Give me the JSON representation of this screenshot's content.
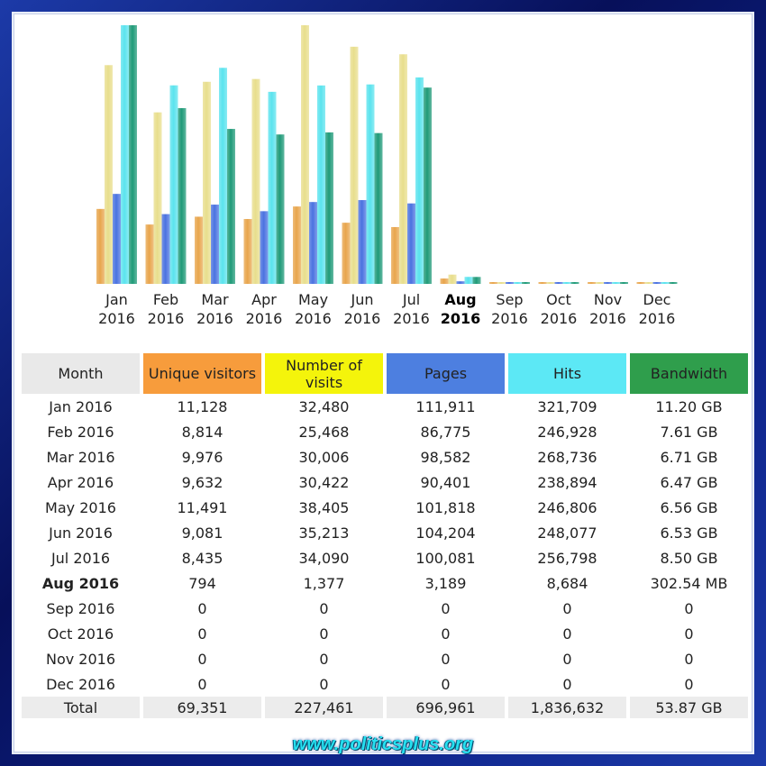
{
  "colors": {
    "unique": "#e8a54c",
    "visits": "#e8de8c",
    "pages": "#4a72e0",
    "hits": "#5ae3ee",
    "bandwidth": "#1f9a78"
  },
  "table": {
    "headers": {
      "month": "Month",
      "unique": "Unique visitors",
      "visits": "Number of visits",
      "pages": "Pages",
      "hits": "Hits",
      "bandwidth": "Bandwidth"
    },
    "rows": [
      {
        "month": "Jan 2016",
        "unique": "11,128",
        "visits": "32,480",
        "pages": "111,911",
        "hits": "321,709",
        "bandwidth": "11.20 GB"
      },
      {
        "month": "Feb 2016",
        "unique": "8,814",
        "visits": "25,468",
        "pages": "86,775",
        "hits": "246,928",
        "bandwidth": "7.61 GB"
      },
      {
        "month": "Mar 2016",
        "unique": "9,976",
        "visits": "30,006",
        "pages": "98,582",
        "hits": "268,736",
        "bandwidth": "6.71 GB"
      },
      {
        "month": "Apr 2016",
        "unique": "9,632",
        "visits": "30,422",
        "pages": "90,401",
        "hits": "238,894",
        "bandwidth": "6.47 GB"
      },
      {
        "month": "May 2016",
        "unique": "11,491",
        "visits": "38,405",
        "pages": "101,818",
        "hits": "246,806",
        "bandwidth": "6.56 GB"
      },
      {
        "month": "Jun 2016",
        "unique": "9,081",
        "visits": "35,213",
        "pages": "104,204",
        "hits": "248,077",
        "bandwidth": "6.53 GB"
      },
      {
        "month": "Jul 2016",
        "unique": "8,435",
        "visits": "34,090",
        "pages": "100,081",
        "hits": "256,798",
        "bandwidth": "8.50 GB"
      },
      {
        "month": "Aug 2016",
        "unique": "794",
        "visits": "1,377",
        "pages": "3,189",
        "hits": "8,684",
        "bandwidth": "302.54 MB"
      },
      {
        "month": "Sep 2016",
        "unique": "0",
        "visits": "0",
        "pages": "0",
        "hits": "0",
        "bandwidth": "0"
      },
      {
        "month": "Oct 2016",
        "unique": "0",
        "visits": "0",
        "pages": "0",
        "hits": "0",
        "bandwidth": "0"
      },
      {
        "month": "Nov 2016",
        "unique": "0",
        "visits": "0",
        "pages": "0",
        "hits": "0",
        "bandwidth": "0"
      },
      {
        "month": "Dec 2016",
        "unique": "0",
        "visits": "0",
        "pages": "0",
        "hits": "0",
        "bandwidth": "0"
      }
    ],
    "total": {
      "month": "Total",
      "unique": "69,351",
      "visits": "227,461",
      "pages": "696,961",
      "hits": "1,836,632",
      "bandwidth": "53.87 GB"
    }
  },
  "chart_data": {
    "type": "bar",
    "categories": [
      "Jan 2016",
      "Feb 2016",
      "Mar 2016",
      "Apr 2016",
      "May 2016",
      "Jun 2016",
      "Jul 2016",
      "Aug 2016",
      "Sep 2016",
      "Oct 2016",
      "Nov 2016",
      "Dec 2016"
    ],
    "category_labels": [
      [
        "Jan",
        "2016"
      ],
      [
        "Feb",
        "2016"
      ],
      [
        "Mar",
        "2016"
      ],
      [
        "Apr",
        "2016"
      ],
      [
        "May",
        "2016"
      ],
      [
        "Jun",
        "2016"
      ],
      [
        "Jul",
        "2016"
      ],
      [
        "Aug",
        "2016"
      ],
      [
        "Sep",
        "2016"
      ],
      [
        "Oct",
        "2016"
      ],
      [
        "Nov",
        "2016"
      ],
      [
        "Dec",
        "2016"
      ]
    ],
    "current_index": 7,
    "series": [
      {
        "name": "Unique visitors",
        "key": "unique",
        "values": [
          11128,
          8814,
          9976,
          9632,
          11491,
          9081,
          8435,
          794,
          0,
          0,
          0,
          0
        ]
      },
      {
        "name": "Number of visits",
        "key": "visits",
        "values": [
          32480,
          25468,
          30006,
          30422,
          38405,
          35213,
          34090,
          1377,
          0,
          0,
          0,
          0
        ]
      },
      {
        "name": "Pages",
        "key": "pages",
        "values": [
          111911,
          86775,
          98582,
          90401,
          101818,
          104204,
          100081,
          3189,
          0,
          0,
          0,
          0
        ]
      },
      {
        "name": "Hits",
        "key": "hits",
        "values": [
          321709,
          246928,
          268736,
          238894,
          246806,
          248077,
          256798,
          8684,
          0,
          0,
          0,
          0
        ]
      },
      {
        "name": "Bandwidth",
        "key": "bandwidth",
        "values": [
          11.2,
          7.61,
          6.71,
          6.47,
          6.56,
          6.53,
          8.5,
          0.3,
          0,
          0,
          0,
          0
        ],
        "unit": "GB"
      }
    ]
  },
  "watermark": "www.politicsplus.org"
}
